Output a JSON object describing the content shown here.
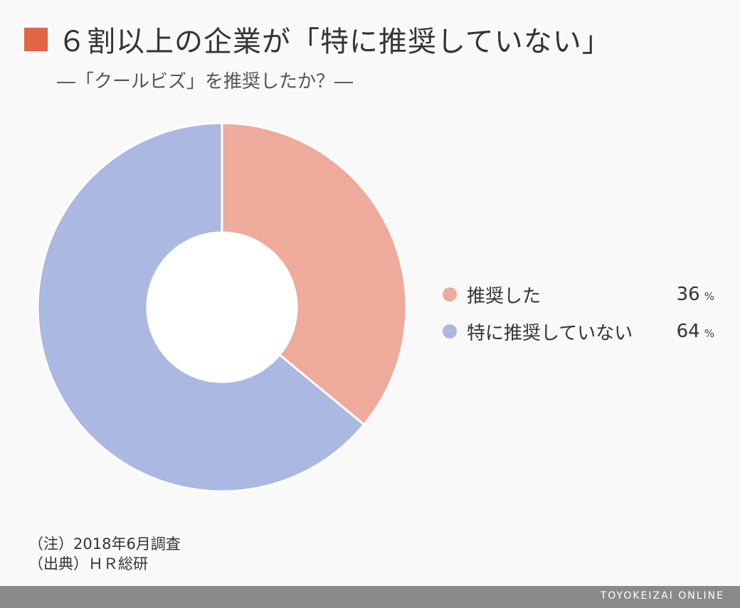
{
  "header": {
    "title": "６割以上の企業が「特に推奨していない」",
    "subtitle": "―「クールビズ」を推奨したか？―"
  },
  "colors": {
    "title_mark": "#e06543",
    "slice_recommended": "#eeaa9b",
    "slice_not_recommended": "#aab8e2"
  },
  "chart_data": {
    "type": "pie",
    "donut": true,
    "title": "",
    "unit": "%",
    "legend_position": "right",
    "slices": [
      {
        "label": "推奨した",
        "value": 36,
        "color": "#eeaa9b"
      },
      {
        "label": "特に推奨していない",
        "value": 64,
        "color": "#aab8e2"
      }
    ]
  },
  "notes": {
    "note": "（注）2018年6月調査",
    "source": "（出典）ＨＲ総研"
  },
  "footer": {
    "brand": "TOYOKEIZAI ONLINE"
  }
}
